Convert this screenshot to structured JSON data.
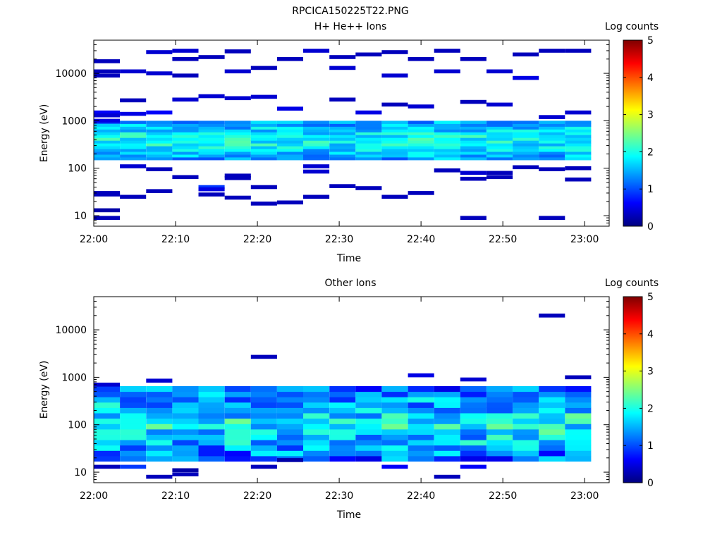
{
  "file_title": "RPCICA150225T22.PNG",
  "colormap_stops": [
    "#00007f",
    "#0000ff",
    "#007fff",
    "#00ffff",
    "#7fff7f",
    "#ffff00",
    "#ff7f00",
    "#ff0000",
    "#7f0000"
  ],
  "chart_data": [
    {
      "type": "heatmap",
      "title": "H+ He++ Ions",
      "xlabel": "Time",
      "ylabel": "Energy (eV)",
      "yscale": "log",
      "ylim": [
        6,
        50000
      ],
      "xlim": [
        "22:00",
        "23:03"
      ],
      "xticks": [
        "22:00",
        "22:10",
        "22:20",
        "22:30",
        "22:40",
        "22:50",
        "23:00"
      ],
      "yticks": [
        10,
        100,
        1000,
        10000
      ],
      "ytick_labels": [
        "10",
        "100",
        "1000",
        "10000"
      ],
      "colorbar": {
        "label": "Log counts",
        "range": [
          0,
          5
        ],
        "ticks": [
          "0",
          "1",
          "2",
          "3",
          "4",
          "5"
        ]
      },
      "time_bins_min": [
        0,
        3.2,
        6.4,
        9.6,
        12.8,
        16,
        19.2,
        22.4,
        25.6,
        28.8,
        32,
        35.2,
        38.4,
        41.6,
        44.8,
        48,
        51.2,
        54.4,
        57.6
      ],
      "cells": [
        {
          "t": 0,
          "e": [
            9,
            30,
            28,
            13,
            1500,
            1300,
            1000,
            11000,
            9000,
            18000
          ],
          "v": [
            0.3,
            0.3,
            0.3,
            0.2,
            0.6,
            0.4,
            0.5,
            0.3,
            0.3,
            0.3
          ]
        },
        {
          "t": 3.2,
          "e": [
            25,
            110,
            2700,
            1400,
            11000
          ],
          "v": [
            0.3,
            0.4,
            0.3,
            0.5,
            0.4
          ]
        },
        {
          "t": 6.4,
          "e": [
            33,
            95,
            1500,
            10000,
            28000
          ],
          "v": [
            0.3,
            0.3,
            0.6,
            0.4,
            0.4
          ]
        },
        {
          "t": 9.6,
          "e": [
            65,
            2800,
            9000,
            20000,
            30000
          ],
          "v": [
            0.3,
            0.4,
            0.3,
            0.3,
            0.4
          ]
        },
        {
          "t": 12.8,
          "e": [
            28,
            40,
            36,
            3300,
            22000
          ],
          "v": [
            0.3,
            0.9,
            0.5,
            0.4,
            0.3
          ]
        },
        {
          "t": 16,
          "e": [
            24,
            62,
            70,
            3000,
            11000,
            29000
          ],
          "v": [
            0.3,
            0.3,
            0.3,
            0.4,
            0.4,
            0.3
          ]
        },
        {
          "t": 19.2,
          "e": [
            18,
            40,
            3200,
            13000
          ],
          "v": [
            0.3,
            0.3,
            0.4,
            0.3
          ]
        },
        {
          "t": 22.4,
          "e": [
            19,
            1800,
            20000
          ],
          "v": [
            0.3,
            0.5,
            0.3
          ]
        },
        {
          "t": 25.6,
          "e": [
            25,
            85,
            110,
            30000
          ],
          "v": [
            0.3,
            0.4,
            0.4,
            0.4
          ]
        },
        {
          "t": 28.8,
          "e": [
            42,
            2800,
            13000,
            22000
          ],
          "v": [
            0.3,
            0.3,
            0.4,
            0.3
          ]
        },
        {
          "t": 32,
          "e": [
            38,
            1500,
            25000
          ],
          "v": [
            0.3,
            0.5,
            0.3
          ]
        },
        {
          "t": 35.2,
          "e": [
            25,
            2200,
            9000,
            28000
          ],
          "v": [
            0.3,
            0.3,
            0.4,
            0.3
          ]
        },
        {
          "t": 38.4,
          "e": [
            30,
            2000,
            20000
          ],
          "v": [
            0.3,
            0.4,
            0.3
          ]
        },
        {
          "t": 41.6,
          "e": [
            90,
            11000,
            30000
          ],
          "v": [
            0.3,
            0.4,
            0.3
          ]
        },
        {
          "t": 44.8,
          "e": [
            9,
            60,
            80,
            2500,
            20000
          ],
          "v": [
            0.3,
            0.3,
            0.4,
            0.3,
            0.3
          ]
        },
        {
          "t": 48,
          "e": [
            65,
            80,
            2200,
            11000
          ],
          "v": [
            0.3,
            0.3,
            0.4,
            0.4
          ]
        },
        {
          "t": 51.2,
          "e": [
            105,
            8000,
            25000
          ],
          "v": [
            0.3,
            0.5,
            0.3
          ]
        },
        {
          "t": 54.4,
          "e": [
            9,
            95,
            1200,
            30000
          ],
          "v": [
            0.3,
            0.3,
            0.4,
            0.3
          ]
        },
        {
          "t": 57.6,
          "e": [
            58,
            100,
            1500,
            30000
          ],
          "v": [
            0.3,
            0.3,
            0.4,
            0.3
          ]
        }
      ],
      "core_band": {
        "e_min": 150,
        "e_max": 1000,
        "v_min": 1.0,
        "v_max": 2.4
      }
    },
    {
      "type": "heatmap",
      "title": "Other Ions",
      "xlabel": "Time",
      "ylabel": "Energy (eV)",
      "yscale": "log",
      "ylim": [
        6,
        50000
      ],
      "xlim": [
        "22:00",
        "23:03"
      ],
      "xticks": [
        "22:00",
        "22:10",
        "22:20",
        "22:30",
        "22:40",
        "22:50",
        "23:00"
      ],
      "yticks": [
        10,
        100,
        1000,
        10000
      ],
      "ytick_labels": [
        "10",
        "100",
        "1000",
        "10000"
      ],
      "colorbar": {
        "label": "Log counts",
        "range": [
          0,
          5
        ],
        "ticks": [
          "0",
          "1",
          "2",
          "3",
          "4",
          "5"
        ]
      },
      "time_bins_min": [
        0,
        3.2,
        6.4,
        9.6,
        12.8,
        16,
        19.2,
        22.4,
        25.6,
        28.8,
        32,
        35.2,
        38.4,
        41.6,
        44.8,
        48,
        51.2,
        54.4,
        57.6
      ],
      "cells": [
        {
          "t": 0,
          "e": [
            13,
            700
          ],
          "v": [
            0.3,
            0.4
          ]
        },
        {
          "t": 3.2,
          "e": [
            13
          ],
          "v": [
            0.9
          ]
        },
        {
          "t": 6.4,
          "e": [
            8,
            850
          ],
          "v": [
            0.3,
            0.4
          ]
        },
        {
          "t": 9.6,
          "e": [
            9,
            11
          ],
          "v": [
            0.3,
            0.2
          ]
        },
        {
          "t": 19.2,
          "e": [
            13,
            2700
          ],
          "v": [
            0.3,
            0.3
          ]
        },
        {
          "t": 22.4,
          "e": [
            18
          ],
          "v": [
            0.2
          ]
        },
        {
          "t": 35.2,
          "e": [
            13
          ],
          "v": [
            0.6
          ]
        },
        {
          "t": 38.4,
          "e": [
            1100
          ],
          "v": [
            0.5
          ]
        },
        {
          "t": 41.6,
          "e": [
            8
          ],
          "v": [
            0.3
          ]
        },
        {
          "t": 44.8,
          "e": [
            13,
            900
          ],
          "v": [
            0.6,
            0.4
          ]
        },
        {
          "t": 54.4,
          "e": [
            20000
          ],
          "v": [
            0.3
          ]
        },
        {
          "t": 57.6,
          "e": [
            1000
          ],
          "v": [
            0.3
          ]
        }
      ],
      "core_band": {
        "e_min": 17,
        "e_max": 650,
        "v_min": 0.5,
        "v_max": 2.6
      }
    }
  ]
}
